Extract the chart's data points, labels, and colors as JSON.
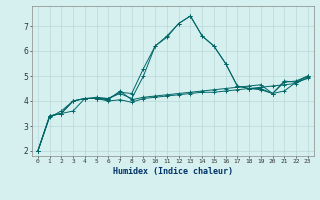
{
  "title": "",
  "xlabel": "Humidex (Indice chaleur)",
  "ylabel": "",
  "background_color": "#d6f0f0",
  "line_color": "#006666",
  "grid_color": "#b8d8d8",
  "xlim": [
    -0.5,
    23.5
  ],
  "ylim": [
    1.8,
    7.8
  ],
  "xticks": [
    0,
    1,
    2,
    3,
    4,
    5,
    6,
    7,
    8,
    9,
    10,
    11,
    12,
    13,
    14,
    15,
    16,
    17,
    18,
    19,
    20,
    21,
    22,
    23
  ],
  "yticks": [
    2,
    3,
    4,
    5,
    6,
    7
  ],
  "series": [
    {
      "x": [
        0,
        1,
        2,
        3,
        4,
        5,
        6,
        7,
        8,
        9,
        10,
        11,
        12,
        13,
        14,
        15,
        16,
        17,
        18,
        19,
        20,
        21,
        22,
        23
      ],
      "y": [
        2.0,
        3.4,
        3.5,
        4.0,
        4.1,
        4.15,
        4.1,
        4.3,
        4.1,
        5.0,
        6.2,
        6.6,
        7.1,
        7.4,
        6.6,
        6.2,
        5.5,
        4.6,
        4.5,
        4.5,
        4.3,
        4.75,
        4.8,
        5.0
      ]
    },
    {
      "x": [
        0,
        1,
        2,
        3,
        4,
        5,
        6,
        7,
        8,
        9,
        10,
        11,
        12,
        13,
        14,
        15,
        16,
        17,
        18,
        19,
        20,
        21,
        22,
        23
      ],
      "y": [
        2.0,
        3.4,
        3.5,
        4.0,
        4.1,
        4.1,
        4.05,
        4.4,
        4.05,
        4.15,
        4.2,
        4.25,
        4.3,
        4.35,
        4.4,
        4.45,
        4.5,
        4.55,
        4.6,
        4.65,
        4.3,
        4.4,
        4.75,
        5.0
      ]
    },
    {
      "x": [
        0,
        1,
        2,
        3,
        4,
        5,
        6,
        7,
        8,
        9,
        10,
        11,
        12,
        13,
        14,
        15,
        16,
        17,
        18,
        19,
        20,
        21,
        22,
        23
      ],
      "y": [
        2.0,
        3.35,
        3.6,
        4.0,
        4.1,
        4.1,
        4.0,
        4.05,
        3.95,
        4.1,
        4.15,
        4.2,
        4.25,
        4.3,
        4.35,
        4.35,
        4.4,
        4.45,
        4.5,
        4.55,
        4.6,
        4.65,
        4.7,
        4.95
      ]
    },
    {
      "x": [
        0,
        1,
        2,
        3,
        4,
        5,
        6,
        7,
        8,
        9,
        10,
        11,
        12,
        13,
        14,
        15,
        16,
        17,
        18,
        19,
        20,
        21,
        22,
        23
      ],
      "y": [
        2.0,
        3.4,
        3.5,
        3.6,
        4.1,
        4.1,
        4.1,
        4.35,
        4.3,
        5.3,
        6.2,
        6.55,
        7.1,
        7.4,
        6.6,
        6.2,
        5.5,
        4.6,
        4.5,
        4.45,
        4.3,
        4.8,
        4.75,
        4.9
      ]
    }
  ]
}
